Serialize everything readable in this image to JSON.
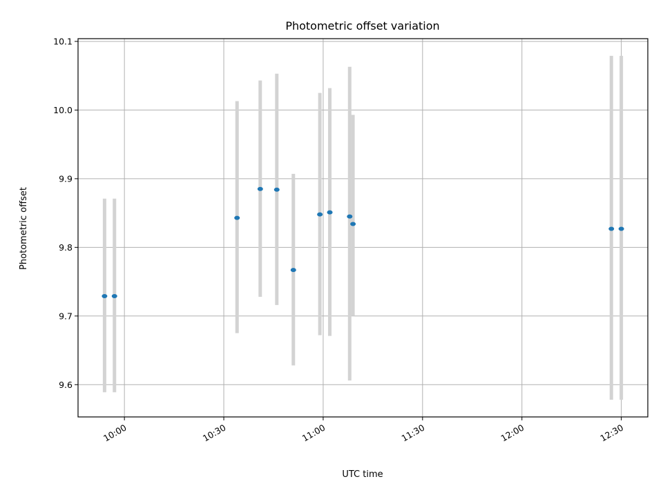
{
  "chart_data": {
    "type": "scatter",
    "title": "Photometric offset variation",
    "xlabel": "UTC time",
    "ylabel": "Photometric offset",
    "x_ticks": [
      "10:00",
      "10:30",
      "11:00",
      "11:30",
      "12:00",
      "12:30"
    ],
    "y_ticks": [
      "9.6",
      "9.7",
      "9.8",
      "9.9",
      "10.0",
      "10.1"
    ],
    "ylim": [
      9.553,
      10.104
    ],
    "xlim": [
      "09:46",
      "12:38"
    ],
    "grid": true,
    "errorbar_color": "#d3d3d3",
    "point_color": "#1f77b4",
    "series": [
      {
        "x": [
          "09:54",
          "09:57",
          "10:34",
          "10:41",
          "10:46",
          "10:51",
          "10:59",
          "11:02",
          "11:08",
          "11:09",
          "12:27",
          "12:30"
        ],
        "y": [
          9.729,
          9.729,
          9.843,
          9.885,
          9.884,
          9.767,
          9.848,
          9.851,
          9.845,
          9.834,
          9.827,
          9.827
        ],
        "err_low": [
          9.589,
          9.589,
          9.675,
          9.728,
          9.716,
          9.628,
          9.672,
          9.671,
          9.606,
          9.7,
          9.578,
          9.578
        ],
        "err_high": [
          9.871,
          9.871,
          10.013,
          10.043,
          10.053,
          9.907,
          10.025,
          10.032,
          10.063,
          9.993,
          10.079,
          10.079
        ]
      }
    ]
  }
}
